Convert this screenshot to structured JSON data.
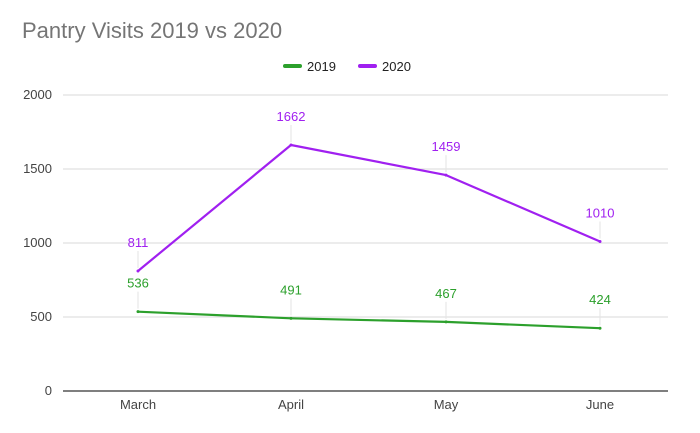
{
  "chart_data": {
    "type": "line",
    "title": "Pantry Visits 2019 vs 2020",
    "categories": [
      "March",
      "April",
      "May",
      "June"
    ],
    "series": [
      {
        "name": "2019",
        "values": [
          536,
          491,
          467,
          424
        ],
        "color": "#2ca02c"
      },
      {
        "name": "2020",
        "values": [
          811,
          1662,
          1459,
          1010
        ],
        "color": "#a020f0"
      }
    ],
    "ylim": [
      0,
      2000
    ],
    "yticks": [
      0,
      500,
      1000,
      1500,
      2000
    ],
    "grid": true,
    "legend": "top-center",
    "data_labels": true
  }
}
